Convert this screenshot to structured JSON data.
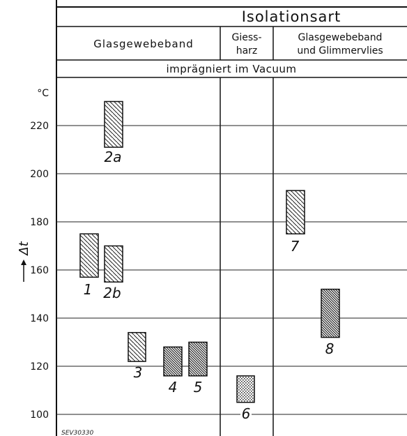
{
  "header": {
    "title": "Isolationsart",
    "columns": [
      {
        "line1": "Glasgewebeband",
        "line2": ""
      },
      {
        "line1": "Giess-",
        "line2": "harz"
      },
      {
        "line1": "Glasgewebeband",
        "line2": "und  Glimmervlies"
      }
    ],
    "subtitle": "imprägniert im Vacuum"
  },
  "footer_code": "SEV30330",
  "chart_data": {
    "type": "bar",
    "ylabel": "Δt",
    "y_unit": "°C",
    "ylim": [
      97,
      233
    ],
    "yticks": [
      100,
      120,
      140,
      160,
      180,
      200,
      220
    ],
    "grid": true,
    "bars": [
      {
        "label": "1",
        "group": "Glasgewebeband",
        "low": 157,
        "high": 175,
        "fill": "hatch"
      },
      {
        "label": "2a",
        "group": "Glasgewebeband",
        "low": 211,
        "high": 230,
        "fill": "hatch"
      },
      {
        "label": "2b",
        "group": "Glasgewebeband",
        "low": 155,
        "high": 170,
        "fill": "hatch"
      },
      {
        "label": "3",
        "group": "Glasgewebeband",
        "low": 122,
        "high": 134,
        "fill": "hatch"
      },
      {
        "label": "4",
        "group": "Glasgewebeband",
        "low": 116,
        "high": 128,
        "fill": "dense"
      },
      {
        "label": "5",
        "group": "Glasgewebeband",
        "low": 116,
        "high": 130,
        "fill": "dense"
      },
      {
        "label": "6",
        "group": "Giessharz",
        "low": 105,
        "high": 116,
        "fill": "dots"
      },
      {
        "label": "7",
        "group": "Glasgewebeband und Glimmervlies",
        "low": 175,
        "high": 193,
        "fill": "hatch"
      },
      {
        "label": "8",
        "group": "Glasgewebeband und Glimmervlies",
        "low": 132,
        "high": 152,
        "fill": "dense"
      }
    ]
  }
}
